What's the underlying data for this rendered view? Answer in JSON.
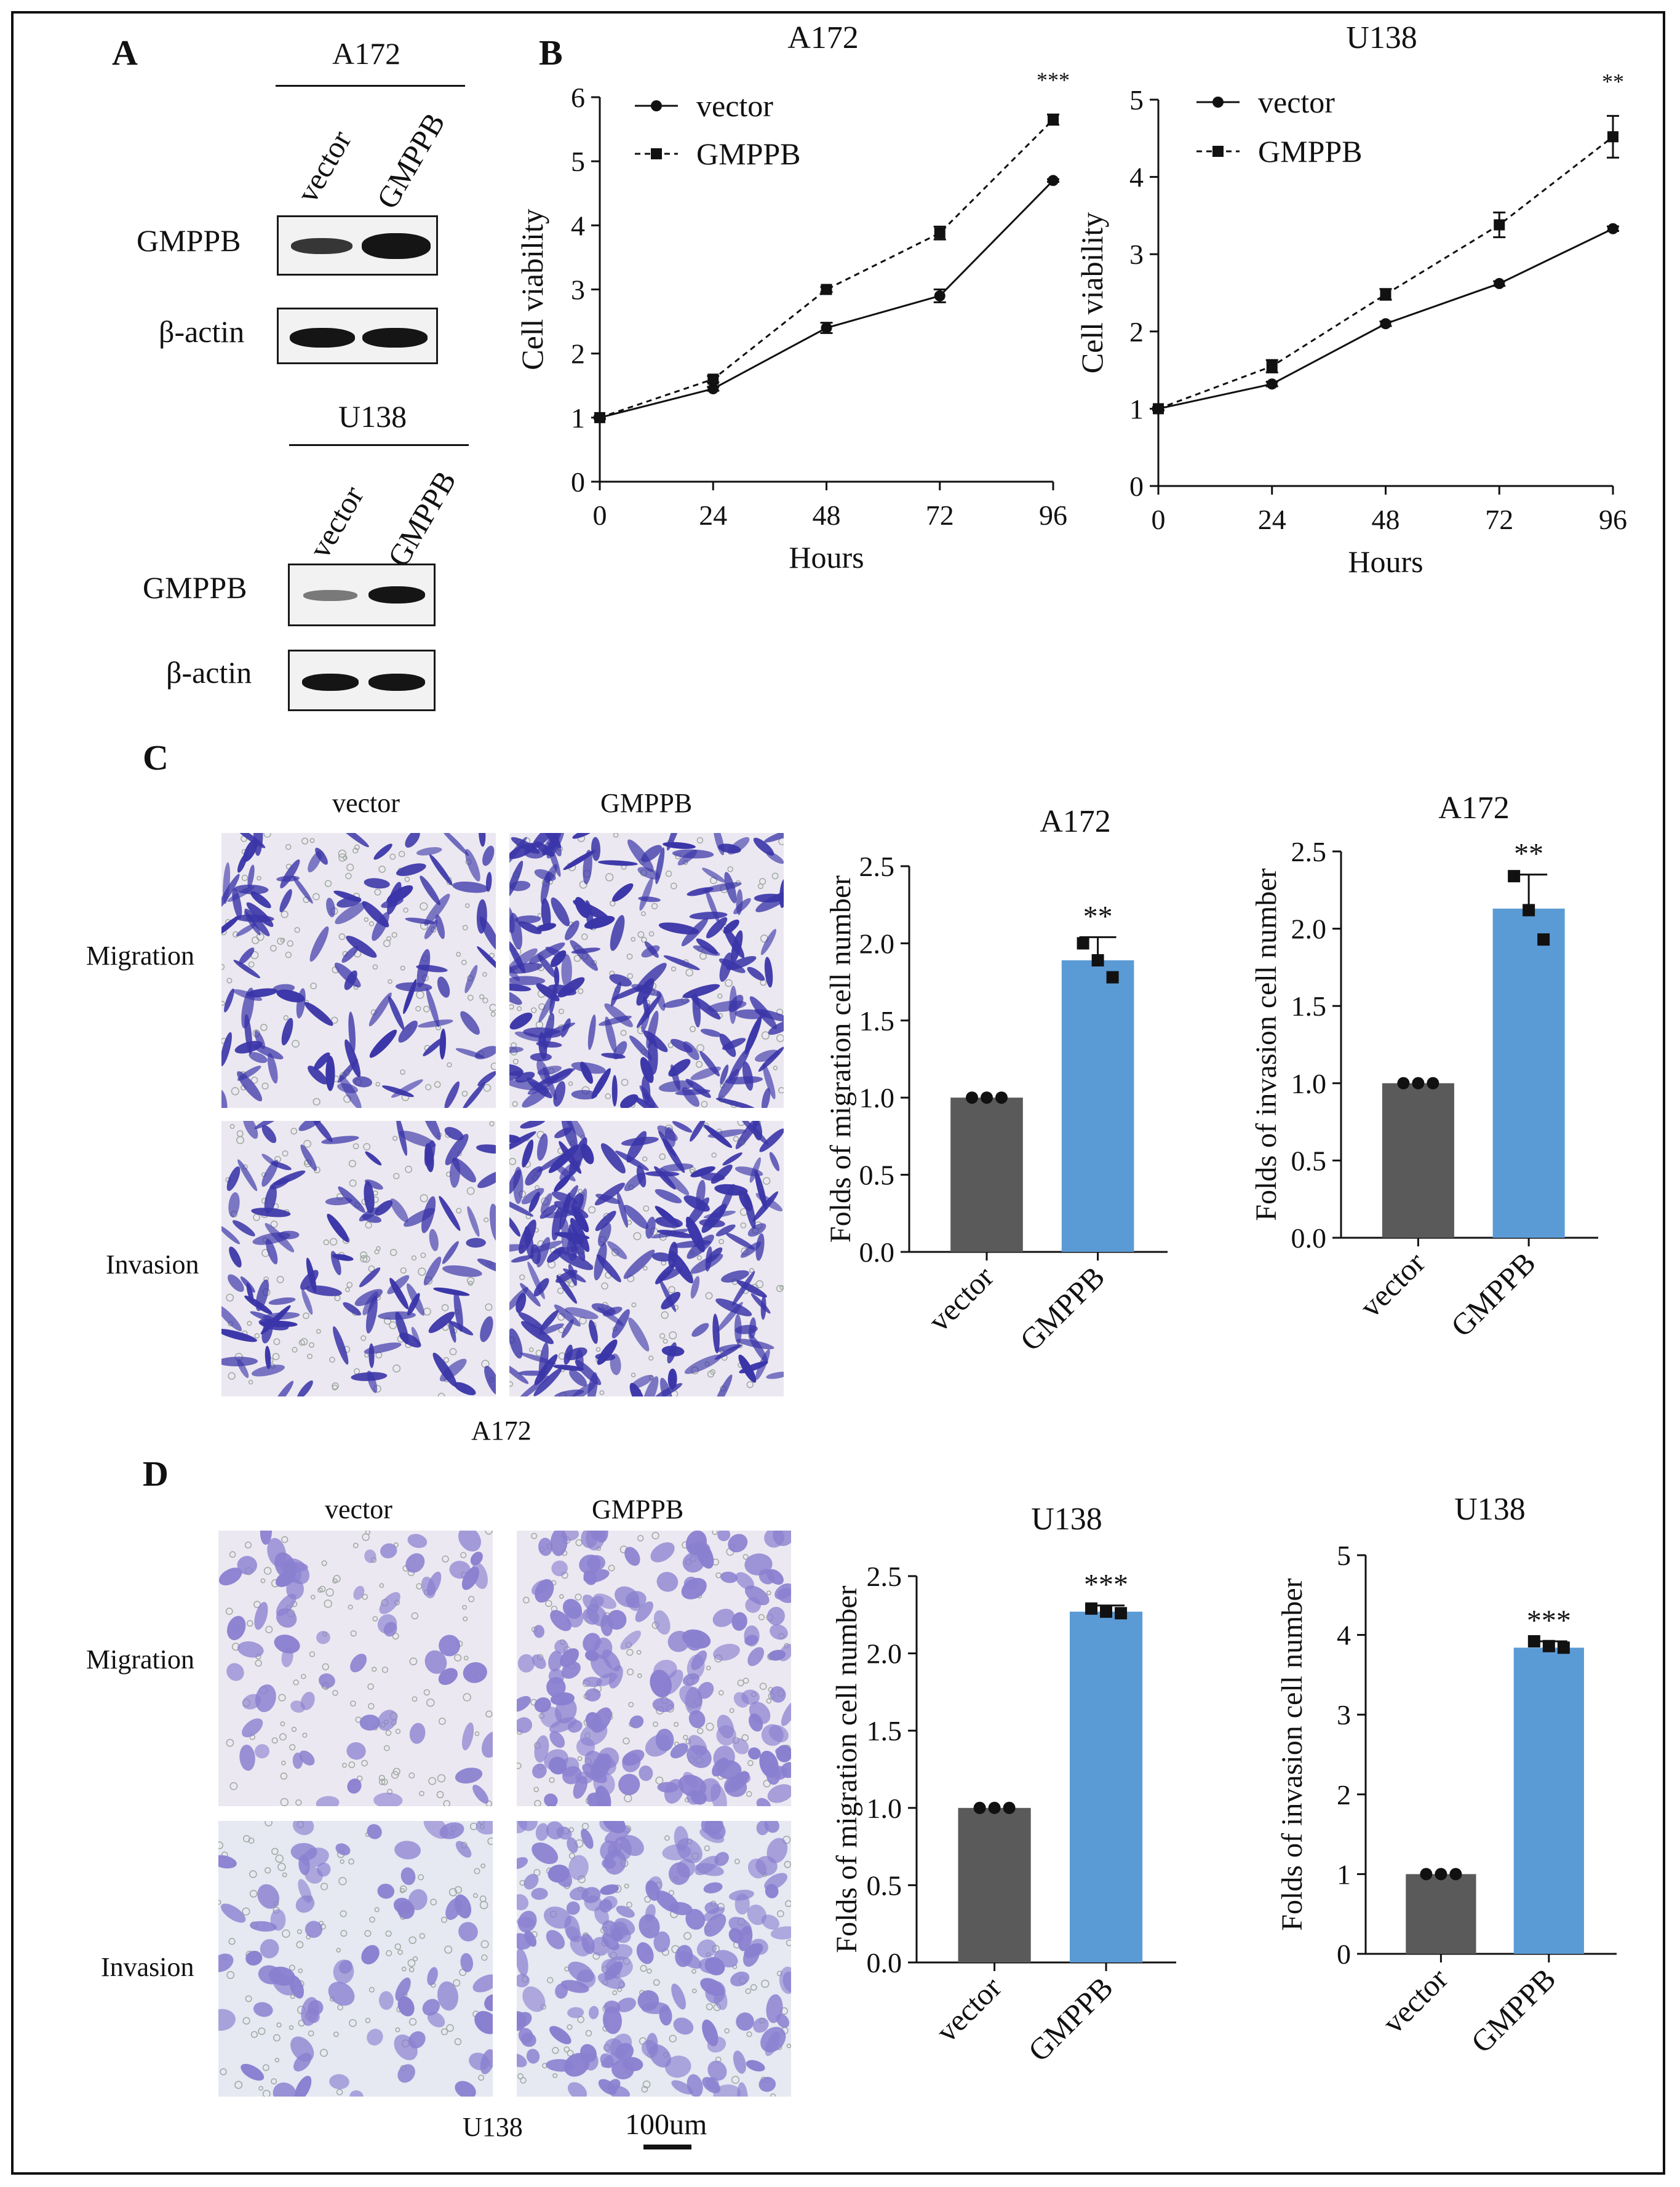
{
  "panels": {
    "A": {
      "letter": "A",
      "blots": [
        {
          "cell_line": "A172",
          "lanes": [
            "vector",
            "GMPPB"
          ],
          "rows": [
            "GMPPB",
            "β-actin"
          ]
        },
        {
          "cell_line": "U138",
          "lanes": [
            "vector",
            "GMPPB"
          ],
          "rows": [
            "GMPPB",
            "β-actin"
          ]
        }
      ]
    },
    "B": {
      "letter": "B"
    },
    "C": {
      "letter": "C",
      "columns": [
        "vector",
        "GMPPB"
      ],
      "rows": [
        "Migration",
        "Invasion"
      ],
      "caption": "A172"
    },
    "D": {
      "letter": "D",
      "columns": [
        "vector",
        "GMPPB"
      ],
      "rows": [
        "Migration",
        "Invasion"
      ],
      "caption": "U138",
      "scale_bar": "100um"
    }
  },
  "colors": {
    "vector_bar": "#5a5a5a",
    "gmppb_bar": "#5b9bd5",
    "stain_dark": "#3a35a8",
    "stain_light": "#8a80d0",
    "micro_bg": "#ece8f1"
  },
  "chart_data": [
    {
      "id": "B-A172",
      "type": "line",
      "title": "A172",
      "xlabel": "Hours",
      "ylabel": "Cell viability",
      "x": [
        0,
        24,
        48,
        72,
        96
      ],
      "xticks": [
        "0",
        "24",
        "48",
        "72",
        "96"
      ],
      "yticks": [
        "0",
        "1",
        "2",
        "3",
        "4",
        "5",
        "6"
      ],
      "ylim": [
        0,
        6
      ],
      "series": [
        {
          "name": "vector",
          "values": [
            1.0,
            1.45,
            2.4,
            2.9,
            4.7
          ],
          "errors": [
            0.02,
            0.03,
            0.08,
            0.1,
            0.02
          ],
          "style": "solid",
          "marker": "circle"
        },
        {
          "name": "GMPPB",
          "values": [
            1.0,
            1.6,
            3.0,
            3.88,
            5.65
          ],
          "errors": [
            0.02,
            0.05,
            0.04,
            0.1,
            0.08
          ],
          "style": "dashed",
          "marker": "square"
        }
      ],
      "annotations": [
        {
          "text": "***",
          "x": 96
        }
      ],
      "legend": "top-left"
    },
    {
      "id": "B-U138",
      "type": "line",
      "title": "U138",
      "xlabel": "Hours",
      "ylabel": "Cell viability",
      "x": [
        0,
        24,
        48,
        72,
        96
      ],
      "xticks": [
        "0",
        "24",
        "48",
        "72",
        "96"
      ],
      "yticks": [
        "0",
        "1",
        "2",
        "3",
        "4",
        "5"
      ],
      "ylim": [
        0,
        5
      ],
      "series": [
        {
          "name": "vector",
          "values": [
            1.0,
            1.32,
            2.1,
            2.62,
            3.33
          ],
          "errors": [
            0.02,
            0.03,
            0.03,
            0.03,
            0.03
          ],
          "style": "solid",
          "marker": "circle"
        },
        {
          "name": "GMPPB",
          "values": [
            1.0,
            1.55,
            2.48,
            3.38,
            4.52
          ],
          "errors": [
            0.02,
            0.08,
            0.07,
            0.16,
            0.27
          ],
          "style": "dashed",
          "marker": "square"
        }
      ],
      "annotations": [
        {
          "text": "**",
          "x": 96
        }
      ],
      "legend": "top-left"
    },
    {
      "id": "C-migration",
      "type": "bar",
      "title": "A172",
      "ylabel": "Folds of migration cell number",
      "categories": [
        "vector",
        "GMPPB"
      ],
      "values": [
        1.0,
        1.89
      ],
      "errors": [
        0,
        0.15
      ],
      "points": [
        [
          1.0,
          1.0,
          1.0
        ],
        [
          2.0,
          1.89,
          1.78
        ]
      ],
      "yticks": [
        "0.0",
        "0.5",
        "1.0",
        "1.5",
        "2.0",
        "2.5"
      ],
      "ylim": [
        0,
        2.5
      ],
      "annotation": "**"
    },
    {
      "id": "C-invasion",
      "type": "bar",
      "title": "A172",
      "ylabel": "Folds of invasion cell number",
      "categories": [
        "vector",
        "GMPPB"
      ],
      "values": [
        1.0,
        2.13
      ],
      "errors": [
        0,
        0.22
      ],
      "points": [
        [
          1.0,
          1.0,
          1.0
        ],
        [
          2.34,
          2.12,
          1.93
        ]
      ],
      "yticks": [
        "0.0",
        "0.5",
        "1.0",
        "1.5",
        "2.0",
        "2.5"
      ],
      "ylim": [
        0,
        2.5
      ],
      "annotation": "**"
    },
    {
      "id": "D-migration",
      "type": "bar",
      "title": "U138",
      "ylabel": "Folds of migration cell number",
      "categories": [
        "vector",
        "GMPPB"
      ],
      "values": [
        1.0,
        2.27
      ],
      "errors": [
        0,
        0.04
      ],
      "points": [
        [
          1.0,
          1.0,
          1.0
        ],
        [
          2.29,
          2.27,
          2.26
        ]
      ],
      "yticks": [
        "0.0",
        "0.5",
        "1.0",
        "1.5",
        "2.0",
        "2.5"
      ],
      "ylim": [
        0,
        2.5
      ],
      "annotation": "***"
    },
    {
      "id": "D-invasion",
      "type": "bar",
      "title": "U138",
      "ylabel": "Folds of invasion cell number",
      "categories": [
        "vector",
        "GMPPB"
      ],
      "values": [
        1.0,
        3.84
      ],
      "errors": [
        0,
        0.08
      ],
      "points": [
        [
          1.0,
          1.0,
          1.0
        ],
        [
          3.92,
          3.86,
          3.84
        ]
      ],
      "yticks": [
        "0",
        "1",
        "2",
        "3",
        "4",
        "5"
      ],
      "ylim": [
        0,
        5
      ],
      "annotation": "***"
    }
  ]
}
